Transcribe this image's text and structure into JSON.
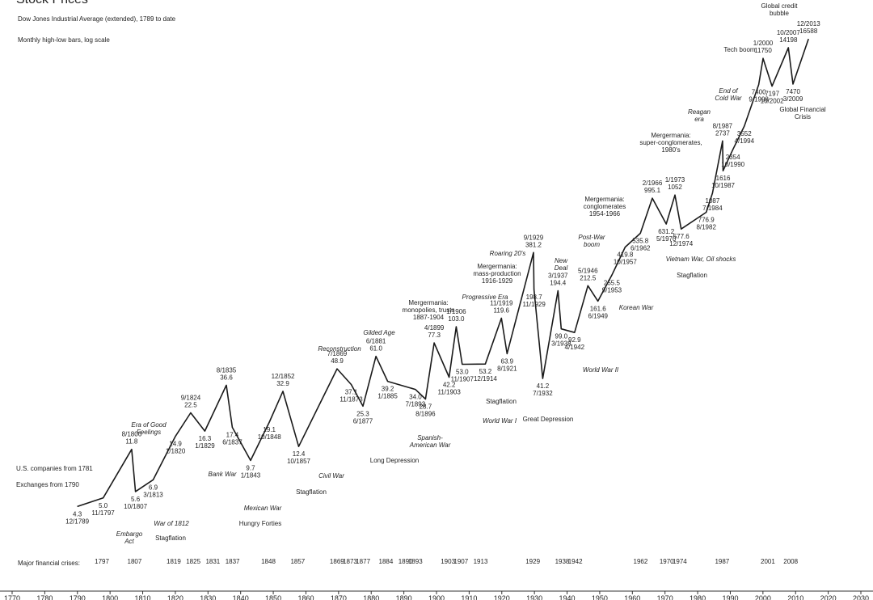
{
  "chart_data": {
    "type": "line",
    "log_scale": true,
    "title": "Stock Prices",
    "subtitle": "Dow Jones Industrial Average (extended), 1789 to date",
    "note": "Monthly high-low bars, log scale",
    "side_notes": [
      "U.S. companies from 1781",
      "Exchanges from 1790"
    ],
    "xlim": [
      1770,
      2030
    ],
    "xticks": [
      1770,
      1780,
      1790,
      1800,
      1810,
      1820,
      1830,
      1840,
      1850,
      1860,
      1870,
      1880,
      1890,
      1900,
      1910,
      1920,
      1930,
      1940,
      1950,
      1960,
      1970,
      1980,
      1990,
      2000,
      2010,
      2020,
      2030
    ],
    "ylim": [
      2,
      20000
    ],
    "series": [
      {
        "name": "Dow Jones Industrial Average",
        "color": "#1a1a1a",
        "x": [
          "12/1789",
          "11/1797",
          "8/1806",
          "10/1807",
          "3/1813",
          "1/1820",
          "9/1824",
          "1/1829",
          "8/1835",
          "6/1837",
          "1/1843",
          "10/1848",
          "12/1852",
          "10/1857",
          "7/1869",
          "11/1873",
          "6/1877",
          "6/1881",
          "1/1885",
          "7/1893",
          "8/1896",
          "4/1899",
          "11/1903",
          "1/1906",
          "11/1907",
          "12/1914",
          "11/1919",
          "8/1921",
          "9/1929",
          "11/1929",
          "7/1932",
          "3/1937",
          "3/1938",
          "4/1942",
          "5/1946",
          "6/1949",
          "9/1953",
          "10/1957",
          "6/1962",
          "2/1966",
          "5/1970",
          "1/1973",
          "12/1974",
          "8/1982",
          "7/1984",
          "8/1987",
          "10/1987",
          "10/1990",
          "4/1994",
          "9/1998",
          "1/2000",
          "10/2002",
          "10/2007",
          "3/2009",
          "12/2013"
        ],
        "values": [
          4.3,
          5.0,
          11.8,
          5.6,
          6.9,
          14.9,
          22.5,
          16.3,
          36.6,
          17.4,
          9.7,
          19.1,
          32.9,
          12.4,
          48.9,
          37.1,
          25.3,
          61.0,
          39.2,
          34.0,
          28.7,
          77.3,
          42.2,
          103.0,
          53.0,
          53.2,
          119.6,
          63.9,
          381.2,
          198.7,
          41.2,
          194.4,
          99.0,
          92.9,
          212.5,
          161.6,
          255.5,
          419.8,
          535.8,
          995.1,
          631.2,
          1052,
          577.6,
          776.9,
          1087,
          2737,
          1616,
          2354,
          3552,
          7400,
          11750,
          7197,
          14198,
          7470,
          16588
        ],
        "value_labels": [
          "4.3",
          "5.0",
          "11.8",
          "5.6",
          "6.9",
          "14.9",
          "22.5",
          "16.3",
          "36.6",
          "17.4",
          "9.7",
          "19.1",
          "32.9",
          "12.4",
          "48.9",
          "37.1",
          "25.3",
          "61.0",
          "39.2",
          "34.0",
          "28.7",
          "77.3",
          "42.2",
          "103.0",
          "53.0",
          "53.2",
          "119.6",
          "63.9",
          "381.2",
          "198.7",
          "41.2",
          "194.4",
          "99.0",
          "92.9",
          "212.5",
          "161.6",
          "255.5",
          "419.8",
          "535.8",
          "995.1",
          "631.2",
          "1052",
          "577.6",
          "776.9",
          "1087",
          "2737",
          "1616",
          "2354",
          "3552",
          "7400",
          "11750",
          "7197",
          "14198",
          "7470",
          "16588"
        ]
      }
    ],
    "annotations": [
      "Era of Good\nFeelings",
      "Embargo\nAct",
      "War of 1812",
      "Stagflation",
      "Bank War",
      "Mexican War",
      "Hungry Forties",
      "Civil War",
      "Stagflation",
      "Reconstruction",
      "Gilded Age",
      "Long Depression",
      "Mergermania:\nmonopolies, trusts\n1887-1904",
      "Spanish-\nAmerican War",
      "Progressive Era",
      "Stagflation",
      "World War I",
      "Mergermania:\nmass-production\n1916-1929",
      "Roaring 20's",
      "Great Depression",
      "New\nDeal",
      "World War II",
      "Post-War\nboom",
      "Korean War",
      "Mergermania:\nconglomerates\n1954-1966",
      "Vietnam War, Oil shocks",
      "Stagflation",
      "Mergermania:\nsuper-conglomerates,\n1980's",
      "Reagan\nera",
      "End of\nCold War",
      "Tech boom",
      "Global credit\nbubble",
      "Global Financial\nCrisis"
    ],
    "crises_label": "Major financial crises:",
    "crises": [
      "1797",
      "1807",
      "1819",
      "1825",
      "1831",
      "1837",
      "1848",
      "1857",
      "1869",
      "1873",
      "1877",
      "1884",
      "1890",
      "1893",
      "1903",
      "1907",
      "1913",
      "1929",
      "1938",
      "1942",
      "1962",
      "1970",
      "1974",
      "1987",
      "2001",
      "2008"
    ]
  }
}
